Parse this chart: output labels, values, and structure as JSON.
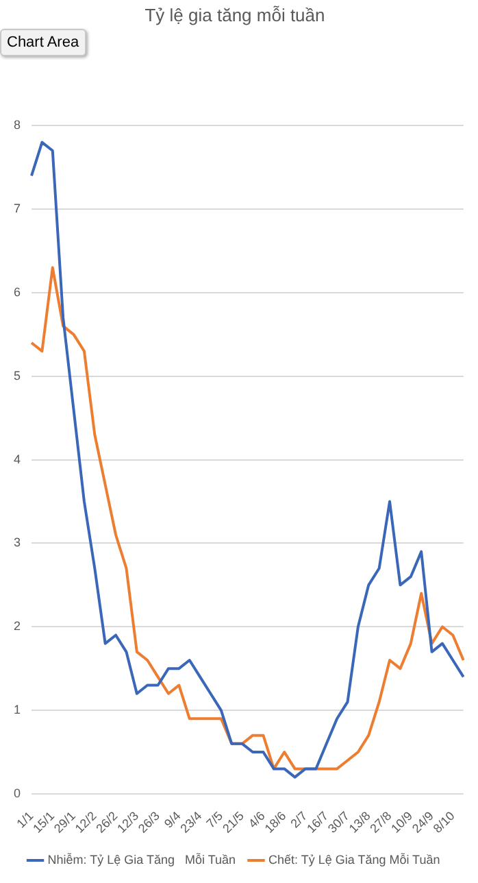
{
  "chart_data": {
    "type": "line",
    "title": "Tỷ lệ gia tăng mỗi tuần",
    "categories": [
      "1/1",
      null,
      "15/1",
      null,
      "29/1",
      null,
      "12/2",
      null,
      "26/2",
      null,
      "12/3",
      null,
      "26/3",
      null,
      "9/4",
      null,
      "23/4",
      null,
      "7/5",
      null,
      "21/5",
      null,
      "4/6",
      null,
      "18/6",
      null,
      "2/7",
      null,
      "16/7",
      null,
      "30/7",
      null,
      "13/8",
      null,
      "27/8",
      null,
      "10/9",
      null,
      "24/9",
      null,
      "8/10",
      null
    ],
    "series": [
      {
        "name": "Nhiễm: Tỷ Lệ Gia Tăng   Mỗi Tuần",
        "color": "#3a67b8",
        "values": [
          7.4,
          7.8,
          7.7,
          5.7,
          4.6,
          3.5,
          2.7,
          1.8,
          1.9,
          1.7,
          1.2,
          1.3,
          1.3,
          1.5,
          1.5,
          1.6,
          1.4,
          1.2,
          1.0,
          0.6,
          0.6,
          0.5,
          0.5,
          0.3,
          0.3,
          0.2,
          0.3,
          0.3,
          0.6,
          0.9,
          1.1,
          2.0,
          2.5,
          2.7,
          3.5,
          2.5,
          2.6,
          2.9,
          1.7,
          1.8,
          1.6,
          1.4
        ]
      },
      {
        "name": "Chết: Tỷ Lệ Gia Tăng Mỗi Tuần",
        "color": "#ed7d31",
        "values": [
          5.4,
          5.3,
          6.3,
          5.6,
          5.5,
          5.3,
          4.3,
          3.7,
          3.1,
          2.7,
          1.7,
          1.6,
          1.4,
          1.2,
          1.3,
          0.9,
          0.9,
          0.9,
          0.9,
          0.6,
          0.6,
          0.7,
          0.7,
          0.3,
          0.5,
          0.3,
          0.3,
          0.3,
          0.3,
          0.3,
          0.4,
          0.5,
          0.7,
          1.1,
          1.6,
          1.5,
          1.8,
          2.4,
          1.8,
          2.0,
          1.9,
          1.6
        ]
      }
    ],
    "ylim": [
      0,
      8
    ],
    "yticks": [
      0,
      1,
      2,
      3,
      4,
      5,
      6,
      7,
      8
    ],
    "grid": "y",
    "legend": "bottom",
    "marker": "none",
    "line_style": "solid",
    "annotations": [
      "Chart Area"
    ]
  }
}
